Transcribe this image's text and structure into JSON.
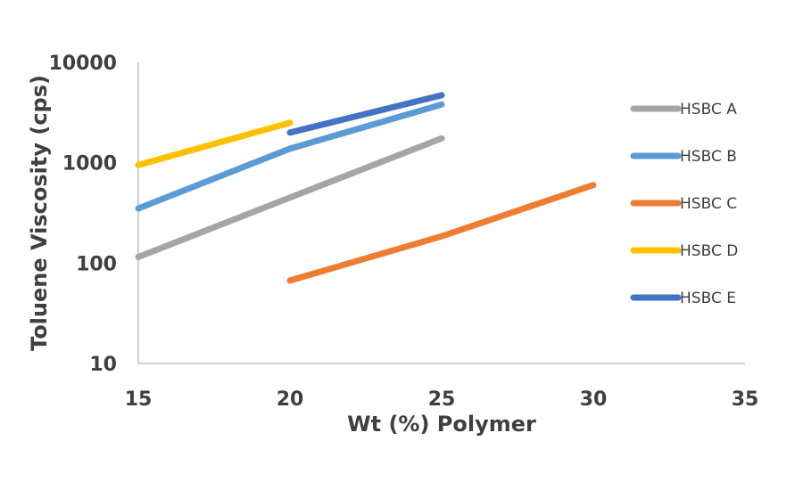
{
  "chart_data": {
    "type": "line",
    "title": "",
    "xlabel": "Wt (%) Polymer",
    "ylabel": "Toluene Viscosity (cps)",
    "xlim": [
      15,
      35
    ],
    "ylim": [
      10,
      10000
    ],
    "yscale": "log",
    "x_ticks": [
      "15",
      "20",
      "25",
      "30",
      "35"
    ],
    "y_ticks": [
      "10",
      "100",
      "1000",
      "10000"
    ],
    "grid": false,
    "legend_position": "right",
    "series": [
      {
        "name": "HSBC A",
        "color": "#a5a5a5",
        "x": [
          15,
          20,
          25
        ],
        "y": [
          115,
          450,
          1750
        ]
      },
      {
        "name": "HSBC B",
        "color": "#5b9bd5",
        "x": [
          15,
          20,
          25
        ],
        "y": [
          350,
          1380,
          3800
        ]
      },
      {
        "name": "HSBC C",
        "color": "#ed7d31",
        "x": [
          20,
          25,
          30
        ],
        "y": [
          67,
          185,
          600
        ]
      },
      {
        "name": "HSBC D",
        "color": "#ffc000",
        "x": [
          15,
          20
        ],
        "y": [
          950,
          2500
        ]
      },
      {
        "name": "HSBC E",
        "color": "#4472c4",
        "x": [
          20,
          25
        ],
        "y": [
          2000,
          4700
        ]
      }
    ]
  }
}
